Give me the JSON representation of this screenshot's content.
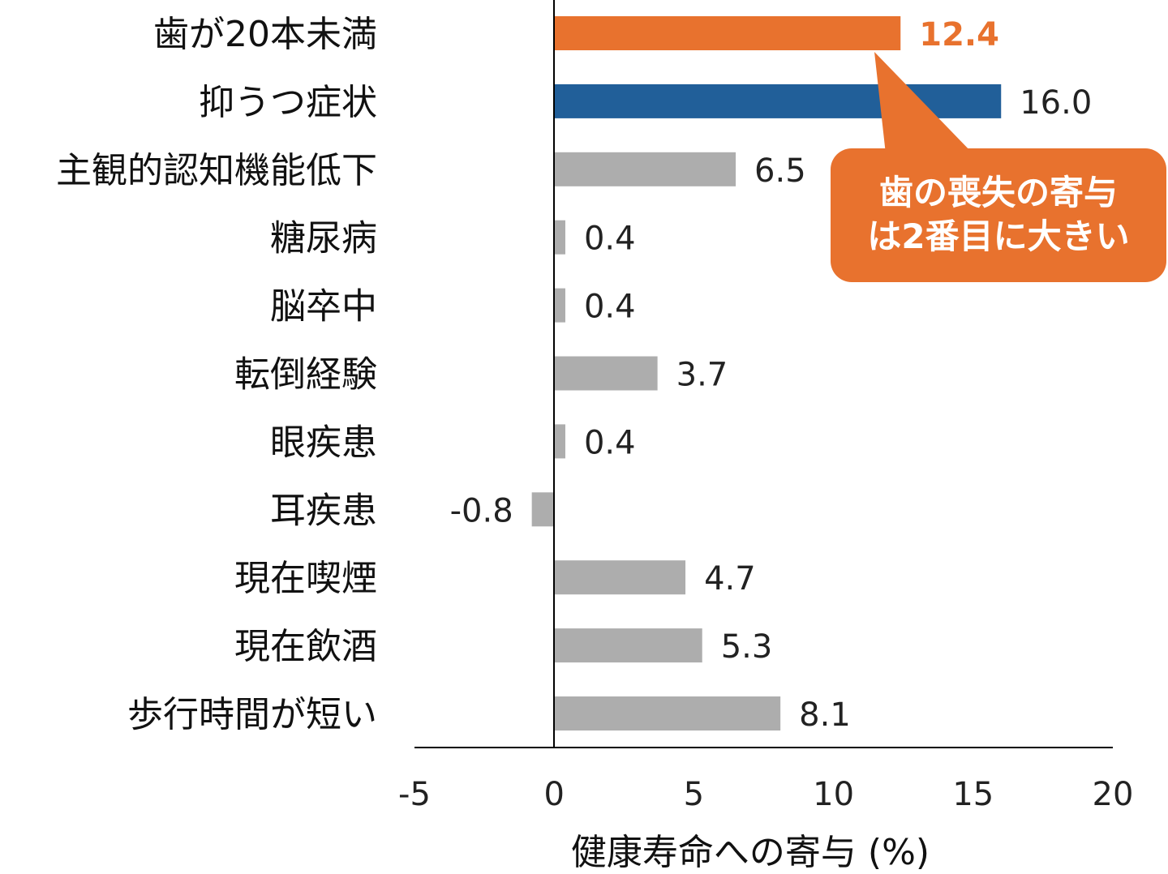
{
  "chart_data": {
    "type": "bar",
    "orientation": "horizontal",
    "categories": [
      "歯が20本未満",
      "抑うつ症状",
      "主観的認知機能低下",
      "糖尿病",
      "脳卒中",
      "転倒経験",
      "眼疾患",
      "耳疾患",
      "現在喫煙",
      "現在飲酒",
      "歩行時間が短い"
    ],
    "values": [
      12.4,
      16.0,
      6.5,
      0.4,
      0.4,
      3.7,
      0.4,
      -0.8,
      4.7,
      5.3,
      8.1
    ],
    "value_labels": [
      "12.4",
      "16.0",
      "6.5",
      "0.4",
      "0.4",
      "3.7",
      "0.4",
      "-0.8",
      "4.7",
      "5.3",
      "8.1"
    ],
    "bar_colors": [
      "#E8722E",
      "#215F99",
      "#ADADAD",
      "#ADADAD",
      "#ADADAD",
      "#ADADAD",
      "#ADADAD",
      "#ADADAD",
      "#ADADAD",
      "#ADADAD",
      "#ADADAD"
    ],
    "highlight_label_color": "#E8722E",
    "xlabel": "健康寿命への寄与 (%)",
    "ylabel": "",
    "xlim": [
      -5,
      20
    ],
    "xticks": [
      "-5",
      "0",
      "5",
      "10",
      "15",
      "20"
    ],
    "grid": false,
    "annotation": {
      "lines": [
        "歯の喪失の寄与",
        "は2番目に大きい"
      ],
      "color": "#E8722E",
      "points_to": "歯が20本未満"
    }
  }
}
